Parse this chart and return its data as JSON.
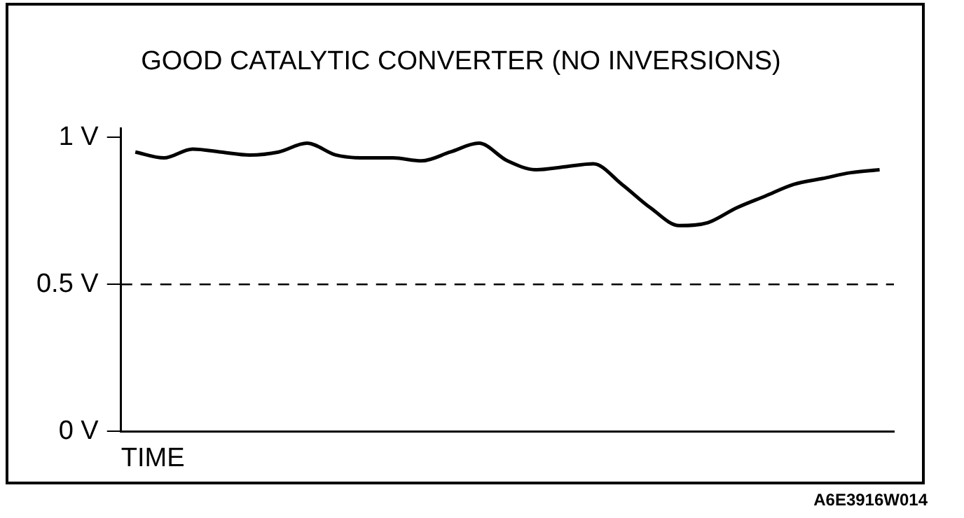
{
  "chart_data": {
    "type": "line",
    "title": "GOOD CATALYTIC CONVERTER (NO INVERSIONS)",
    "xlabel": "TIME",
    "categories": [
      null,
      null,
      null,
      null,
      null,
      null,
      null,
      null,
      null,
      null,
      null,
      null,
      null,
      null,
      null,
      null,
      null,
      null,
      null,
      null,
      null,
      null,
      null,
      null,
      null,
      null,
      null
    ],
    "series": [
      {
        "color": "#000000",
        "values": [
          0.95,
          0.93,
          0.96,
          0.95,
          0.94,
          0.95,
          0.98,
          0.94,
          0.93,
          0.93,
          0.92,
          0.95,
          0.98,
          0.92,
          0.89,
          0.9,
          0.91,
          0.84,
          0.76,
          0.7,
          0.71,
          0.76,
          0.8,
          0.84,
          0.86,
          0.88,
          0.89
        ]
      }
    ],
    "ylim": [
      0,
      1.03
    ],
    "yticks": [
      {
        "value": 0,
        "label": "0 V"
      },
      {
        "value": 0.5,
        "label": "0.5 V"
      },
      {
        "value": 1,
        "label": "1 V"
      }
    ],
    "ref_lines": [
      {
        "axis": "y",
        "value": 0.5,
        "color": "#000000",
        "line_style": "dashed"
      }
    ],
    "annotations": [
      "A6E3916W014"
    ],
    "tick_labels": "y",
    "grid": false,
    "legend": false,
    "marker": "none",
    "line_style": "solid"
  }
}
